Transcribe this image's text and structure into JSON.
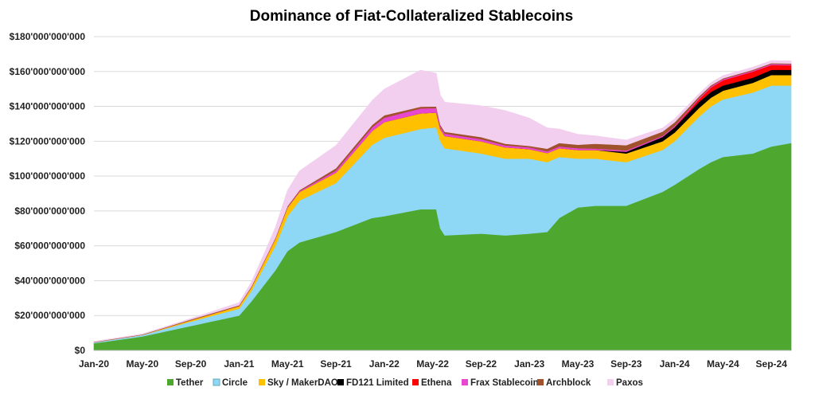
{
  "chart_data": {
    "type": "area",
    "stacked": true,
    "title": "Dominance of Fiat-Collateralized Stablecoins",
    "xlabel": "",
    "ylabel": "",
    "ylim": [
      0,
      180000000000
    ],
    "y_ticks": [
      "$0",
      "$20'000'000'000",
      "$40'000'000'000",
      "$60'000'000'000",
      "$80'000'000'000",
      "$100'000'000'000",
      "$120'000'000'000",
      "$140'000'000'000",
      "$160'000'000'000",
      "$180'000'000'000"
    ],
    "x_ticks": [
      "Jan-20",
      "May-20",
      "Sep-20",
      "Jan-21",
      "May-21",
      "Sep-21",
      "Jan-22",
      "May-22",
      "Sep-22",
      "Jan-23",
      "May-23",
      "Sep-23",
      "Jan-24",
      "May-24",
      "Sep-24"
    ],
    "grid": "horizontal",
    "legend_position": "bottom",
    "value_unit": "USD billions",
    "x": [
      "2020-01-01",
      "2020-05-01",
      "2020-09-01",
      "2021-01-01",
      "2021-02-01",
      "2021-03-01",
      "2021-04-01",
      "2021-05-01",
      "2021-06-01",
      "2021-09-01",
      "2021-12-01",
      "2022-01-01",
      "2022-04-01",
      "2022-05-10",
      "2022-05-20",
      "2022-06-01",
      "2022-09-01",
      "2022-11-01",
      "2023-01-01",
      "2023-02-15",
      "2023-03-15",
      "2023-05-01",
      "2023-06-15",
      "2023-09-01",
      "2023-12-01",
      "2024-01-01",
      "2024-03-01",
      "2024-04-01",
      "2024-05-01",
      "2024-07-15",
      "2024-09-01",
      "2024-10-20"
    ],
    "series": [
      {
        "name": "Tether",
        "color": "#4ea72e",
        "values": [
          4.1,
          8,
          14,
          20,
          28,
          37,
          46,
          57,
          62,
          68,
          76,
          77,
          81,
          81,
          70,
          66,
          67,
          66,
          67,
          68,
          76,
          82,
          83,
          83,
          91,
          95,
          104,
          108,
          111,
          113,
          117,
          119
        ]
      },
      {
        "name": "Circle",
        "color": "#8fd8f5",
        "values": [
          0.5,
          0.8,
          2.5,
          4,
          6,
          10,
          14,
          20,
          24,
          28,
          42,
          45,
          46,
          47,
          50,
          50,
          46,
          44,
          43,
          40,
          35,
          28,
          27,
          25,
          24,
          25,
          30,
          32,
          33,
          35,
          35,
          33
        ]
      },
      {
        "name": "Sky / MakerDAO",
        "color": "#ffc000",
        "values": [
          0.1,
          0.2,
          0.8,
          1.5,
          2,
          3,
          4,
          5,
          5,
          6,
          8,
          9,
          9,
          8.5,
          7,
          7,
          7,
          6.5,
          5.5,
          5.2,
          5,
          5,
          5,
          5,
          5,
          5,
          5,
          5,
          5,
          5.5,
          6,
          6
        ]
      },
      {
        "name": "FD121 Limited",
        "color": "#000000",
        "values": [
          0,
          0,
          0,
          0,
          0,
          0,
          0,
          0,
          0,
          0,
          0,
          0,
          0,
          0,
          0,
          0,
          0,
          0,
          0,
          0,
          0,
          0,
          0,
          1,
          2.5,
          3,
          3.5,
          3.3,
          3,
          3,
          3,
          3
        ]
      },
      {
        "name": "Ethena",
        "color": "#ff0000",
        "values": [
          0,
          0,
          0,
          0,
          0,
          0,
          0,
          0,
          0,
          0,
          0,
          0,
          0,
          0,
          0,
          0,
          0,
          0,
          0,
          0,
          0,
          0,
          0,
          0,
          0,
          0.2,
          1.5,
          2.5,
          3,
          3.5,
          2.8,
          2.6
        ]
      },
      {
        "name": "Frax Stablecoin",
        "color": "#e848d0",
        "values": [
          0,
          0,
          0,
          0.05,
          0.1,
          0.1,
          0.2,
          0.3,
          0.5,
          1.2,
          2,
          2.5,
          2.8,
          2.5,
          1.5,
          1.4,
          1.2,
          1.1,
          1,
          1,
          1,
          1,
          0.8,
          0.7,
          0.65,
          0.65,
          0.6,
          0.6,
          0.6,
          0.5,
          0.5,
          0.5
        ]
      },
      {
        "name": "Archblock",
        "color": "#a0522d",
        "values": [
          0.15,
          0.15,
          0.4,
          0.4,
          0.4,
          0.4,
          0.4,
          0.5,
          0.5,
          1.3,
          1.4,
          1.4,
          1,
          1,
          1,
          1,
          1.2,
          1,
          0.8,
          1.5,
          2,
          2,
          2.8,
          3,
          2.4,
          2,
          1,
          0.7,
          0.5,
          0.5,
          0.5,
          0.5
        ]
      },
      {
        "name": "Paxos",
        "color": "#f2cfee",
        "values": [
          0.3,
          0.3,
          0.6,
          1.5,
          2.5,
          4,
          6,
          9,
          11,
          13,
          14,
          15,
          21,
          19,
          17,
          17,
          18,
          19,
          16,
          12,
          8,
          6,
          4.5,
          3,
          2,
          2,
          1.5,
          1.5,
          1.5,
          1.5,
          1.5,
          1.5
        ]
      }
    ]
  }
}
